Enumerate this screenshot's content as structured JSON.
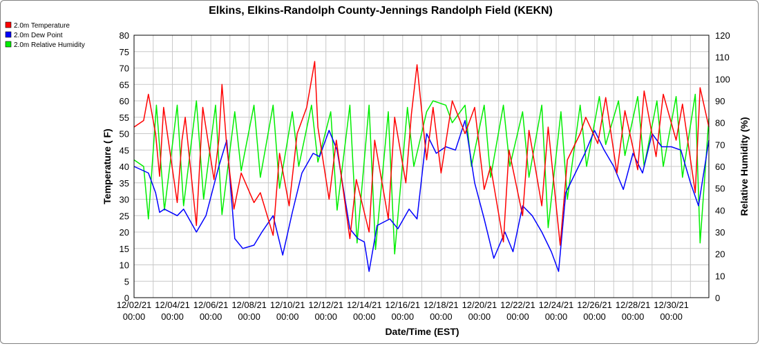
{
  "chart_data": {
    "type": "line",
    "title": "Elkins, Elkins-Randolph County-Jennings Randolph Field (KEKN)",
    "xlabel": "Date/Time (EST)",
    "ylabel": "Temperature ( F)",
    "y2label": "Relative Humidity (%)",
    "ylim": [
      0,
      80
    ],
    "y2lim": [
      0,
      120
    ],
    "y_ticks": [
      "0",
      "5",
      "10",
      "15",
      "20",
      "25",
      "30",
      "35",
      "40",
      "45",
      "50",
      "55",
      "60",
      "65",
      "70",
      "75",
      "80"
    ],
    "y2_ticks": [
      "0",
      "10",
      "20",
      "30",
      "40",
      "50",
      "60",
      "70",
      "80",
      "90",
      "100",
      "110",
      "120"
    ],
    "x_range": [
      "12/02/21 00:00",
      "12/31/21 23:00"
    ],
    "x_ticks": [
      {
        "date": "12/02/21",
        "time": "00:00"
      },
      {
        "date": "12/04/21",
        "time": "00:00"
      },
      {
        "date": "12/06/21",
        "time": "00:00"
      },
      {
        "date": "12/08/21",
        "time": "00:00"
      },
      {
        "date": "12/10/21",
        "time": "00:00"
      },
      {
        "date": "12/12/21",
        "time": "00:00"
      },
      {
        "date": "12/14/21",
        "time": "00:00"
      },
      {
        "date": "12/16/21",
        "time": "00:00"
      },
      {
        "date": "12/18/21",
        "time": "00:00"
      },
      {
        "date": "12/20/21",
        "time": "00:00"
      },
      {
        "date": "12/22/21",
        "time": "00:00"
      },
      {
        "date": "12/24/21",
        "time": "00:00"
      },
      {
        "date": "12/26/21",
        "time": "00:00"
      },
      {
        "date": "12/28/21",
        "time": "00:00"
      },
      {
        "date": "12/30/21",
        "time": "00:00"
      }
    ],
    "grid": true,
    "legend_position": "top-left",
    "series": [
      {
        "name": "2.0m Temperature",
        "color": "#ff0000",
        "axis": "left",
        "x": [
          "12/02/21 00:00",
          "12/02/21 12:00",
          "12/02/21 18:00",
          "12/03/21 03:00",
          "12/03/21 08:00",
          "12/03/21 13:00",
          "12/04/21 06:00",
          "12/04/21 12:00",
          "12/04/21 16:00",
          "12/05/21 06:00",
          "12/05/21 14:00",
          "12/06/21 04:00",
          "12/06/21 10:00",
          "12/06/21 14:00",
          "12/06/21 20:00",
          "12/07/21 05:00",
          "12/07/21 14:00",
          "12/08/21 06:00",
          "12/08/21 14:00",
          "12/09/21 06:00",
          "12/09/21 14:00",
          "12/10/21 02:00",
          "12/10/21 12:00",
          "12/11/21 00:00",
          "12/11/21 10:00",
          "12/11/21 14:00",
          "12/12/21 04:00",
          "12/12/21 13:00",
          "12/13/21 06:00",
          "12/13/21 14:00",
          "12/14/21 06:00",
          "12/14/21 13:00",
          "12/15/21 06:00",
          "12/15/21 14:00",
          "12/16/21 04:00",
          "12/16/21 11:00",
          "12/16/21 18:00",
          "12/17/21 06:00",
          "12/17/21 14:00",
          "12/18/21 00:00",
          "12/18/21 14:00",
          "12/19/21 06:00",
          "12/19/21 18:00",
          "12/20/21 06:00",
          "12/20/21 14:00",
          "12/21/21 06:00",
          "12/21/21 13:00",
          "12/22/21 06:00",
          "12/22/21 14:00",
          "12/23/21 06:00",
          "12/23/21 14:00",
          "12/24/21 05:00",
          "12/24/21 14:00",
          "12/25/21 06:00",
          "12/25/21 13:00",
          "12/26/21 04:00",
          "12/26/21 14:00",
          "12/27/21 04:00",
          "12/27/21 14:00",
          "12/28/21 06:00",
          "12/28/21 14:00",
          "12/29/21 05:00",
          "12/29/21 14:00",
          "12/30/21 06:00",
          "12/30/21 14:00",
          "12/31/21 06:00",
          "12/31/21 12:00",
          "12/31/21 23:00"
        ],
        "y": [
          52,
          54,
          62,
          50,
          37,
          58,
          29,
          48,
          55,
          22,
          58,
          36,
          48,
          65,
          46,
          27,
          38,
          29,
          32,
          19,
          44,
          28,
          50,
          58,
          72,
          52,
          30,
          48,
          18,
          36,
          20,
          48,
          24,
          55,
          35,
          56,
          71,
          42,
          58,
          38,
          60,
          50,
          58,
          33,
          40,
          17,
          45,
          25,
          51,
          28,
          52,
          16,
          42,
          50,
          55,
          47,
          61,
          38,
          57,
          39,
          63,
          43,
          62,
          48,
          59,
          32,
          64,
          52
        ]
      },
      {
        "name": "2.0m Dew Point",
        "color": "#0000ff",
        "axis": "left",
        "x": [
          "12/02/21 00:00",
          "12/02/21 18:00",
          "12/03/21 03:00",
          "12/03/21 08:00",
          "12/03/21 14:00",
          "12/04/21 06:00",
          "12/04/21 14:00",
          "12/05/21 06:00",
          "12/05/21 18:00",
          "12/06/21 10:00",
          "12/06/21 20:00",
          "12/07/21 06:00",
          "12/07/21 16:00",
          "12/08/21 06:00",
          "12/08/21 16:00",
          "12/09/21 06:00",
          "12/09/21 18:00",
          "12/10/21 06:00",
          "12/10/21 18:00",
          "12/11/21 08:00",
          "12/11/21 16:00",
          "12/12/21 04:00",
          "12/12/21 14:00",
          "12/13/21 06:00",
          "12/13/21 16:00",
          "12/14/21 00:00",
          "12/14/21 06:00",
          "12/14/21 16:00",
          "12/15/21 08:00",
          "12/15/21 18:00",
          "12/16/21 08:00",
          "12/16/21 18:00",
          "12/17/21 06:00",
          "12/17/21 18:00",
          "12/18/21 06:00",
          "12/18/21 18:00",
          "12/19/21 06:00",
          "12/19/21 18:00",
          "12/20/21 06:00",
          "12/20/21 18:00",
          "12/21/21 08:00",
          "12/21/21 18:00",
          "12/22/21 06:00",
          "12/22/21 18:00",
          "12/23/21 06:00",
          "12/23/21 18:00",
          "12/24/21 03:00",
          "12/24/21 12:00",
          "12/25/21 00:00",
          "12/25/21 12:00",
          "12/26/21 00:00",
          "12/26/21 12:00",
          "12/27/21 00:00",
          "12/27/21 12:00",
          "12/28/21 00:00",
          "12/28/21 12:00",
          "12/29/21 00:00",
          "12/29/21 12:00",
          "12/30/21 00:00",
          "12/30/21 12:00",
          "12/31/21 00:00",
          "12/31/21 10:00",
          "12/31/21 23:00"
        ],
        "y": [
          40,
          38,
          32,
          26,
          27,
          25,
          27,
          20,
          25,
          40,
          48,
          18,
          15,
          16,
          20,
          25,
          13,
          26,
          38,
          44,
          43,
          51,
          45,
          21,
          18,
          17,
          8,
          22,
          24,
          21,
          27,
          24,
          50,
          44,
          46,
          45,
          54,
          35,
          24,
          12,
          20,
          14,
          28,
          25,
          20,
          14,
          8,
          32,
          38,
          44,
          51,
          45,
          40,
          33,
          44,
          38,
          50,
          46,
          46,
          45,
          35,
          28,
          48
        ]
      },
      {
        "name": "2.0m Relative Humidity",
        "color": "#00ee00",
        "axis": "right",
        "x": [
          "12/02/21 00:00",
          "12/02/21 12:00",
          "12/02/21 18:00",
          "12/03/21 04:00",
          "12/03/21 14:00",
          "12/04/21 06:00",
          "12/04/21 14:00",
          "12/05/21 06:00",
          "12/05/21 15:00",
          "12/06/21 06:00",
          "12/06/21 14:00",
          "12/07/21 06:00",
          "12/07/21 14:00",
          "12/08/21 06:00",
          "12/08/21 14:00",
          "12/09/21 06:00",
          "12/09/21 14:00",
          "12/10/21 06:00",
          "12/10/21 14:00",
          "12/11/21 06:00",
          "12/11/21 14:00",
          "12/12/21 06:00",
          "12/12/21 14:00",
          "12/13/21 06:00",
          "12/13/21 15:00",
          "12/14/21 06:00",
          "12/14/21 14:00",
          "12/15/21 06:00",
          "12/15/21 14:00",
          "12/16/21 06:00",
          "12/16/21 14:00",
          "12/17/21 06:00",
          "12/17/21 14:00",
          "12/18/21 06:00",
          "12/18/21 14:00",
          "12/19/21 06:00",
          "12/19/21 14:00",
          "12/20/21 06:00",
          "12/20/21 14:00",
          "12/21/21 06:00",
          "12/21/21 14:00",
          "12/22/21 06:00",
          "12/22/21 14:00",
          "12/23/21 06:00",
          "12/23/21 14:00",
          "12/24/21 06:00",
          "12/24/21 14:00",
          "12/25/21 06:00",
          "12/25/21 14:00",
          "12/26/21 06:00",
          "12/26/21 14:00",
          "12/27/21 06:00",
          "12/27/21 14:00",
          "12/28/21 06:00",
          "12/28/21 14:00",
          "12/29/21 06:00",
          "12/29/21 14:00",
          "12/30/21 06:00",
          "12/30/21 14:00",
          "12/31/21 06:00",
          "12/31/21 12:00",
          "12/31/21 23:00"
        ],
        "y": [
          63,
          60,
          36,
          88,
          40,
          88,
          42,
          90,
          45,
          88,
          38,
          85,
          58,
          88,
          55,
          88,
          50,
          85,
          60,
          88,
          62,
          85,
          40,
          88,
          25,
          88,
          22,
          85,
          20,
          87,
          60,
          85,
          90,
          88,
          80,
          88,
          60,
          88,
          55,
          88,
          60,
          85,
          55,
          88,
          32,
          85,
          45,
          88,
          60,
          92,
          70,
          90,
          65,
          92,
          60,
          90,
          60,
          92,
          55,
          93,
          25,
          82
        ]
      }
    ]
  }
}
